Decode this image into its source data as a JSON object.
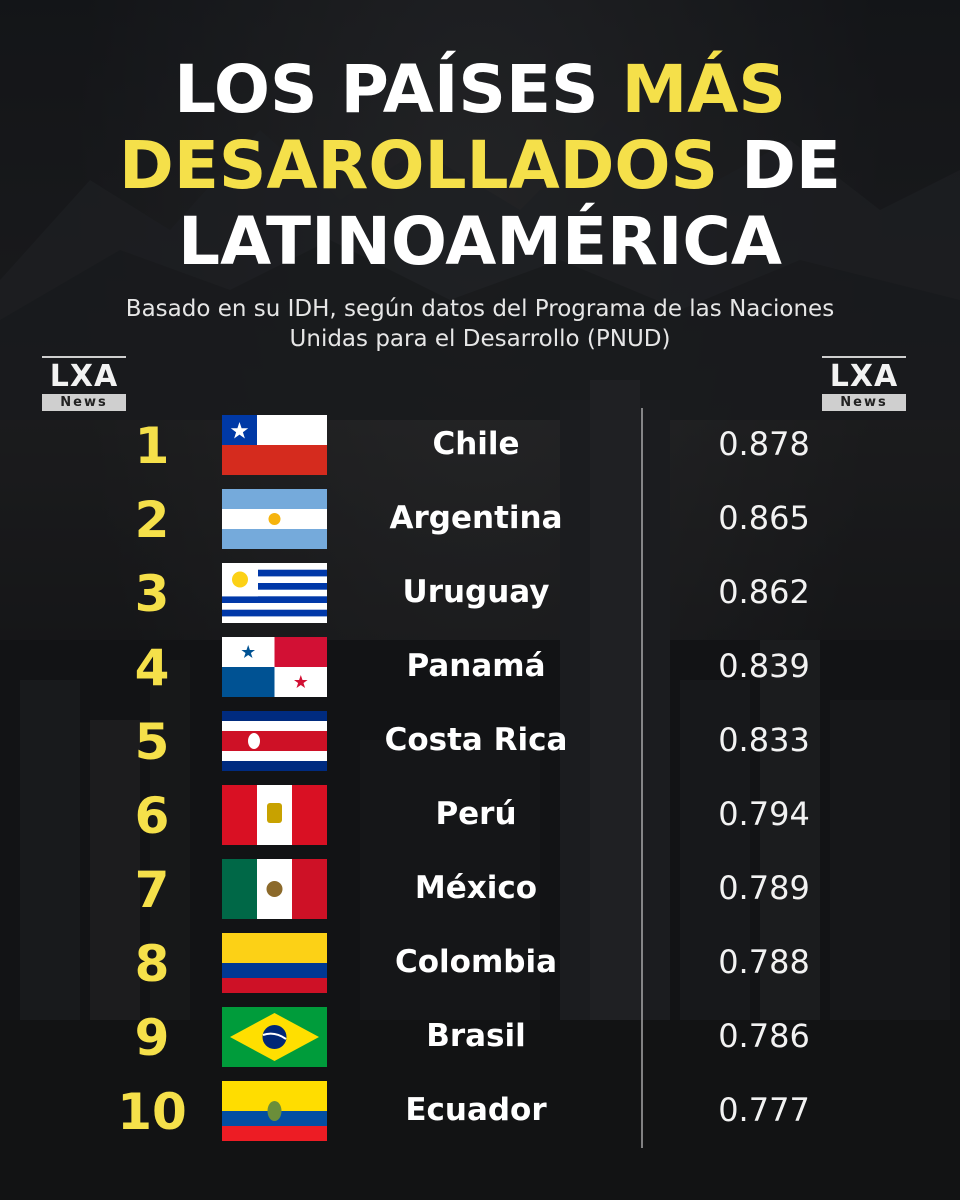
{
  "header": {
    "title_line1_a": "LOS PAÍSES",
    "title_line1_b": "MÁS",
    "title_line2_a": "DESAROLLADOS",
    "title_line2_b": "DE",
    "title_line3": "LATINOAMÉRICA",
    "subtitle_line1": "Basado en su IDH, según datos del Programa de las Naciones",
    "subtitle_line2": "Unidas para el Desarrollo (PNUD)"
  },
  "branding": {
    "logo_mark": "LXA",
    "logo_sub": "News"
  },
  "colors": {
    "accent": "#f5e04a",
    "text": "#ffffff",
    "background": "#16181b"
  },
  "ranking": [
    {
      "rank": "1",
      "country": "Chile",
      "value": "0.878",
      "flag_icon": "chile-flag-icon"
    },
    {
      "rank": "2",
      "country": "Argentina",
      "value": "0.865",
      "flag_icon": "argentina-flag-icon"
    },
    {
      "rank": "3",
      "country": "Uruguay",
      "value": "0.862",
      "flag_icon": "uruguay-flag-icon"
    },
    {
      "rank": "4",
      "country": "Panamá",
      "value": "0.839",
      "flag_icon": "panama-flag-icon"
    },
    {
      "rank": "5",
      "country": "Costa Rica",
      "value": "0.833",
      "flag_icon": "costa-rica-flag-icon"
    },
    {
      "rank": "6",
      "country": "Perú",
      "value": "0.794",
      "flag_icon": "peru-flag-icon"
    },
    {
      "rank": "7",
      "country": "México",
      "value": "0.789",
      "flag_icon": "mexico-flag-icon"
    },
    {
      "rank": "8",
      "country": "Colombia",
      "value": "0.788",
      "flag_icon": "colombia-flag-icon"
    },
    {
      "rank": "9",
      "country": "Brasil",
      "value": "0.786",
      "flag_icon": "brasil-flag-icon"
    },
    {
      "rank": "10",
      "country": "Ecuador",
      "value": "0.777",
      "flag_icon": "ecuador-flag-icon"
    }
  ]
}
